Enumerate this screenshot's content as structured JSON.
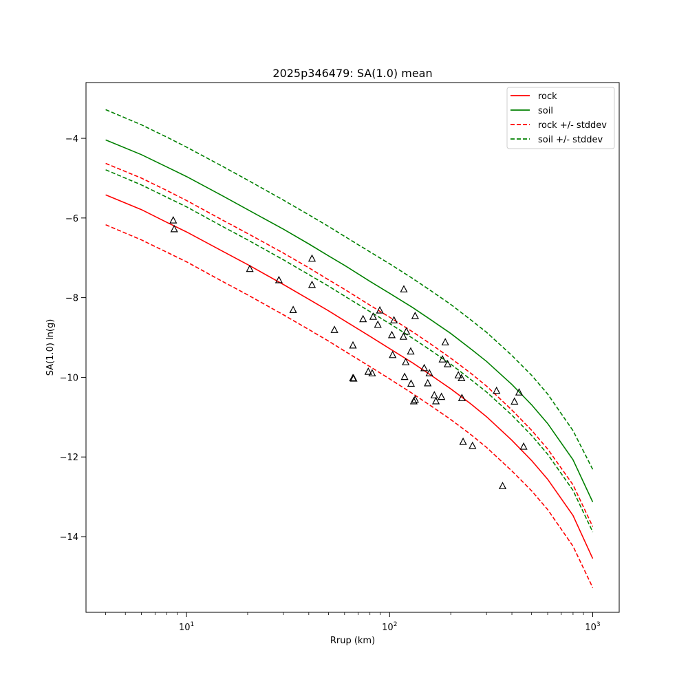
{
  "chart_data": {
    "type": "line",
    "title": "2025p346479: SA(1.0) mean",
    "xlabel": "Rrup (km)",
    "ylabel": "SA(1.0) ln(g)",
    "xscale": "log",
    "xlim": [
      3.2,
      1350
    ],
    "ylim": [
      -15.9,
      -2.6
    ],
    "grid": false,
    "legend_position": "top-right",
    "x_ticks": [
      {
        "value": 10,
        "base": "10",
        "exp": "1"
      },
      {
        "value": 100,
        "base": "10",
        "exp": "2"
      },
      {
        "value": 1000,
        "base": "10",
        "exp": "3"
      }
    ],
    "y_ticks": [
      {
        "value": -4,
        "label": "−4"
      },
      {
        "value": -6,
        "label": "−6"
      },
      {
        "value": -8,
        "label": "−8"
      },
      {
        "value": -10,
        "label": "−10"
      },
      {
        "value": -12,
        "label": "−12"
      },
      {
        "value": -14,
        "label": "−14"
      }
    ],
    "x": [
      4,
      6,
      8,
      10,
      15,
      20,
      30,
      40,
      50,
      60,
      80,
      100,
      130,
      160,
      200,
      250,
      300,
      400,
      500,
      600,
      800,
      1000
    ],
    "series": [
      {
        "name": "rock",
        "color": "#ff0000",
        "style": "solid",
        "values": [
          -5.42,
          -5.79,
          -6.11,
          -6.35,
          -6.83,
          -7.17,
          -7.67,
          -8.04,
          -8.33,
          -8.58,
          -8.97,
          -9.28,
          -9.64,
          -9.95,
          -10.29,
          -10.66,
          -10.99,
          -11.58,
          -12.09,
          -12.56,
          -13.47,
          -14.55
        ]
      },
      {
        "name": "soil",
        "color": "#008000",
        "style": "solid",
        "values": [
          -4.04,
          -4.41,
          -4.72,
          -4.96,
          -5.44,
          -5.79,
          -6.28,
          -6.65,
          -6.95,
          -7.19,
          -7.59,
          -7.89,
          -8.25,
          -8.56,
          -8.9,
          -9.28,
          -9.6,
          -10.18,
          -10.69,
          -11.16,
          -12.07,
          -13.13
        ]
      },
      {
        "name": "rock +/- stddev",
        "color": "#ff0000",
        "style": "dashed",
        "values": [
          -4.63,
          -5.0,
          -5.31,
          -5.56,
          -6.05,
          -6.39,
          -6.88,
          -7.25,
          -7.55,
          -7.79,
          -8.19,
          -8.49,
          -8.86,
          -9.17,
          -9.52,
          -9.89,
          -10.22,
          -10.82,
          -11.33,
          -11.8,
          -12.7,
          -13.75
        ]
      },
      {
        "name": "",
        "color": "#ff0000",
        "style": "dashed",
        "values": [
          -6.17,
          -6.55,
          -6.86,
          -7.1,
          -7.59,
          -7.93,
          -8.43,
          -8.8,
          -9.09,
          -9.34,
          -9.73,
          -10.04,
          -10.41,
          -10.72,
          -11.06,
          -11.43,
          -11.76,
          -12.35,
          -12.85,
          -13.32,
          -14.24,
          -15.28
        ]
      },
      {
        "name": "soil +/- stddev",
        "color": "#008000",
        "style": "dashed",
        "values": [
          -3.28,
          -3.66,
          -3.97,
          -4.22,
          -4.7,
          -5.05,
          -5.55,
          -5.92,
          -6.21,
          -6.46,
          -6.85,
          -7.15,
          -7.52,
          -7.83,
          -8.17,
          -8.55,
          -8.87,
          -9.45,
          -9.95,
          -10.42,
          -11.34,
          -12.31
        ]
      },
      {
        "name": "",
        "color": "#008000",
        "style": "dashed",
        "values": [
          -4.79,
          -5.17,
          -5.48,
          -5.72,
          -6.21,
          -6.55,
          -7.05,
          -7.42,
          -7.71,
          -7.96,
          -8.35,
          -8.65,
          -9.02,
          -9.33,
          -9.67,
          -10.05,
          -10.37,
          -10.95,
          -11.46,
          -11.93,
          -12.84,
          -13.88
        ]
      }
    ],
    "observations": {
      "marker": "triangle",
      "color": "#000000",
      "points": [
        {
          "x": 8.6,
          "y": -6.06
        },
        {
          "x": 8.7,
          "y": -6.28
        },
        {
          "x": 20.5,
          "y": -7.28
        },
        {
          "x": 28.5,
          "y": -7.56
        },
        {
          "x": 33.5,
          "y": -8.31
        },
        {
          "x": 41.5,
          "y": -7.02
        },
        {
          "x": 41.5,
          "y": -7.68
        },
        {
          "x": 53.5,
          "y": -8.81
        },
        {
          "x": 66,
          "y": -9.2
        },
        {
          "x": 66,
          "y": -10.02
        },
        {
          "x": 66.5,
          "y": -10.03
        },
        {
          "x": 74,
          "y": -8.54
        },
        {
          "x": 78.5,
          "y": -9.86
        },
        {
          "x": 82,
          "y": -9.9
        },
        {
          "x": 83,
          "y": -8.48
        },
        {
          "x": 87.5,
          "y": -8.68
        },
        {
          "x": 89.5,
          "y": -8.32
        },
        {
          "x": 102.5,
          "y": -8.94
        },
        {
          "x": 103.5,
          "y": -9.44
        },
        {
          "x": 105,
          "y": -8.57
        },
        {
          "x": 117,
          "y": -8.98
        },
        {
          "x": 117.5,
          "y": -7.79
        },
        {
          "x": 118.5,
          "y": -9.99
        },
        {
          "x": 120,
          "y": -9.62
        },
        {
          "x": 121,
          "y": -8.85
        },
        {
          "x": 127,
          "y": -9.35
        },
        {
          "x": 127.5,
          "y": -10.16
        },
        {
          "x": 131.5,
          "y": -10.6
        },
        {
          "x": 133.5,
          "y": -10.56
        },
        {
          "x": 133.5,
          "y": -8.46
        },
        {
          "x": 148,
          "y": -9.77
        },
        {
          "x": 154,
          "y": -10.15
        },
        {
          "x": 157,
          "y": -9.9
        },
        {
          "x": 166,
          "y": -10.45
        },
        {
          "x": 169,
          "y": -10.6
        },
        {
          "x": 180,
          "y": -10.49
        },
        {
          "x": 182,
          "y": -9.55
        },
        {
          "x": 188,
          "y": -9.12
        },
        {
          "x": 193,
          "y": -9.67
        },
        {
          "x": 218,
          "y": -9.95
        },
        {
          "x": 226,
          "y": -10.02
        },
        {
          "x": 227,
          "y": -10.52
        },
        {
          "x": 230,
          "y": -11.62
        },
        {
          "x": 256,
          "y": -11.72
        },
        {
          "x": 336,
          "y": -10.34
        },
        {
          "x": 360,
          "y": -12.73
        },
        {
          "x": 412,
          "y": -10.61
        },
        {
          "x": 434,
          "y": -10.38
        },
        {
          "x": 457,
          "y": -11.74
        }
      ]
    }
  }
}
